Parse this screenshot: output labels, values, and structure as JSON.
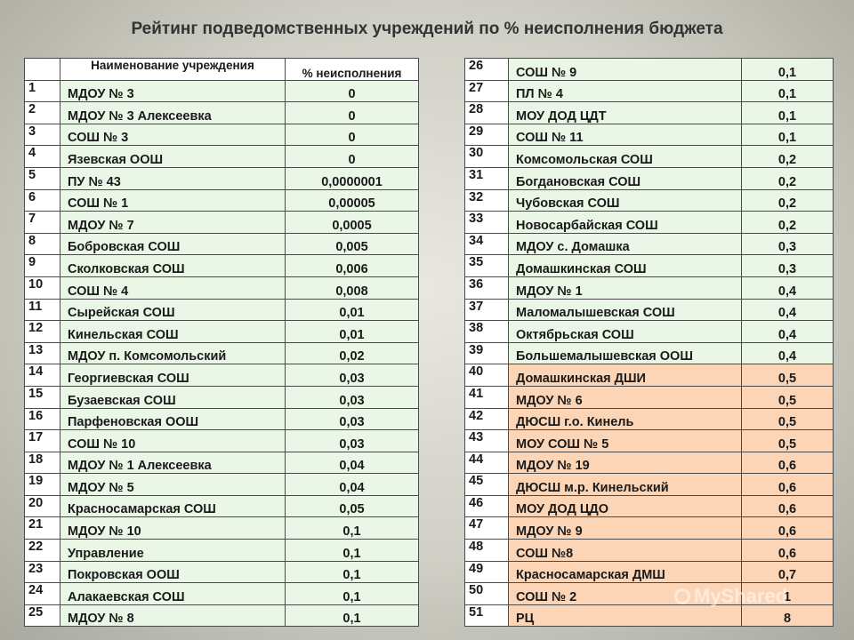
{
  "title": "Рейтинг подведомственных учреждений по % неисполнения бюджета",
  "header": {
    "num": "",
    "name": "Наименование учреждения",
    "value": "% неисполнения"
  },
  "colors": {
    "green_row": "#ebf7e6",
    "orange_row": "#fbd5b5",
    "border": "#4a4a4a"
  },
  "left_rows": [
    {
      "num": "1",
      "name": "МДОУ № 3",
      "value": "0",
      "color": "green"
    },
    {
      "num": "2",
      "name": "МДОУ № 3 Алексеевка",
      "value": "0",
      "color": "green"
    },
    {
      "num": "3",
      "name": "СОШ № 3",
      "value": "0",
      "color": "green"
    },
    {
      "num": "4",
      "name": "Язевская ООШ",
      "value": "0",
      "color": "green"
    },
    {
      "num": "5",
      "name": "ПУ № 43",
      "value": "0,0000001",
      "color": "green"
    },
    {
      "num": "6",
      "name": "СОШ № 1",
      "value": "0,00005",
      "color": "green"
    },
    {
      "num": "7",
      "name": "МДОУ № 7",
      "value": "0,0005",
      "color": "green"
    },
    {
      "num": "8",
      "name": "Бобровская СОШ",
      "value": "0,005",
      "color": "green"
    },
    {
      "num": "9",
      "name": "Сколковская СОШ",
      "value": "0,006",
      "color": "green"
    },
    {
      "num": "10",
      "name": "СОШ № 4",
      "value": "0,008",
      "color": "green"
    },
    {
      "num": "11",
      "name": "Сырейская СОШ",
      "value": "0,01",
      "color": "green"
    },
    {
      "num": "12",
      "name": "Кинельская СОШ",
      "value": "0,01",
      "color": "green"
    },
    {
      "num": "13",
      "name": "МДОУ п. Комсомольский",
      "value": "0,02",
      "color": "green"
    },
    {
      "num": "14",
      "name": "Георгиевская СОШ",
      "value": "0,03",
      "color": "green"
    },
    {
      "num": "15",
      "name": "Бузаевская СОШ",
      "value": "0,03",
      "color": "green"
    },
    {
      "num": "16",
      "name": "Парфеновская ООШ",
      "value": "0,03",
      "color": "green"
    },
    {
      "num": "17",
      "name": "СОШ № 10",
      "value": "0,03",
      "color": "green"
    },
    {
      "num": "18",
      "name": "МДОУ № 1 Алексеевка",
      "value": "0,04",
      "color": "green"
    },
    {
      "num": "19",
      "name": "МДОУ № 5",
      "value": "0,04",
      "color": "green"
    },
    {
      "num": "20",
      "name": "Красносамарская СОШ",
      "value": "0,05",
      "color": "green"
    },
    {
      "num": "21",
      "name": "МДОУ № 10",
      "value": "0,1",
      "color": "green"
    },
    {
      "num": "22",
      "name": "Управление",
      "value": "0,1",
      "color": "green"
    },
    {
      "num": "23",
      "name": "Покровская ООШ",
      "value": "0,1",
      "color": "green"
    },
    {
      "num": "24",
      "name": "Алакаевская СОШ",
      "value": "0,1",
      "color": "green"
    },
    {
      "num": "25",
      "name": "МДОУ № 8",
      "value": "0,1",
      "color": "green"
    }
  ],
  "right_rows": [
    {
      "num": "26",
      "name": "СОШ № 9",
      "value": "0,1",
      "color": "green"
    },
    {
      "num": "27",
      "name": "ПЛ № 4",
      "value": "0,1",
      "color": "green"
    },
    {
      "num": "28",
      "name": "МОУ ДОД ЦДТ",
      "value": "0,1",
      "color": "green"
    },
    {
      "num": "29",
      "name": "СОШ № 11",
      "value": "0,1",
      "color": "green"
    },
    {
      "num": "30",
      "name": "Комсомольская СОШ",
      "value": "0,2",
      "color": "green"
    },
    {
      "num": "31",
      "name": "Богдановская СОШ",
      "value": "0,2",
      "color": "green"
    },
    {
      "num": "32",
      "name": "Чубовская СОШ",
      "value": "0,2",
      "color": "green"
    },
    {
      "num": "33",
      "name": "Новосарбайская СОШ",
      "value": "0,2",
      "color": "green"
    },
    {
      "num": "34",
      "name": "МДОУ с. Домашка",
      "value": "0,3",
      "color": "green"
    },
    {
      "num": "35",
      "name": "Домашкинская СОШ",
      "value": "0,3",
      "color": "green"
    },
    {
      "num": "36",
      "name": "МДОУ № 1",
      "value": "0,4",
      "color": "green"
    },
    {
      "num": "37",
      "name": "Маломалышевская СОШ",
      "value": "0,4",
      "color": "green"
    },
    {
      "num": "38",
      "name": "Октябрьская СОШ",
      "value": "0,4",
      "color": "green"
    },
    {
      "num": "39",
      "name": "Большемалышевская ООШ",
      "value": "0,4",
      "color": "green"
    },
    {
      "num": "40",
      "name": "Домашкинская ДШИ",
      "value": "0,5",
      "color": "orange"
    },
    {
      "num": "41",
      "name": "МДОУ № 6",
      "value": "0,5",
      "color": "orange"
    },
    {
      "num": "42",
      "name": "ДЮСШ г.о. Кинель",
      "value": "0,5",
      "color": "orange"
    },
    {
      "num": "43",
      "name": "МОУ СОШ № 5",
      "value": "0,5",
      "color": "orange"
    },
    {
      "num": "44",
      "name": "МДОУ № 19",
      "value": "0,6",
      "color": "orange"
    },
    {
      "num": "45",
      "name": "ДЮСШ м.р. Кинельский",
      "value": "0,6",
      "color": "orange"
    },
    {
      "num": "46",
      "name": "МОУ ДОД ЦДО",
      "value": "0,6",
      "color": "orange"
    },
    {
      "num": "47",
      "name": "МДОУ № 9",
      "value": "0,6",
      "color": "orange"
    },
    {
      "num": "48",
      "name": "СОШ №8",
      "value": "0,6",
      "color": "orange"
    },
    {
      "num": "49",
      "name": "Красносамарская ДМШ",
      "value": "0,7",
      "color": "orange"
    },
    {
      "num": "50",
      "name": "СОШ № 2",
      "value": "1",
      "color": "orange"
    },
    {
      "num": "51",
      "name": "РЦ",
      "value": "8",
      "color": "orange"
    }
  ],
  "watermark": "MyShared"
}
